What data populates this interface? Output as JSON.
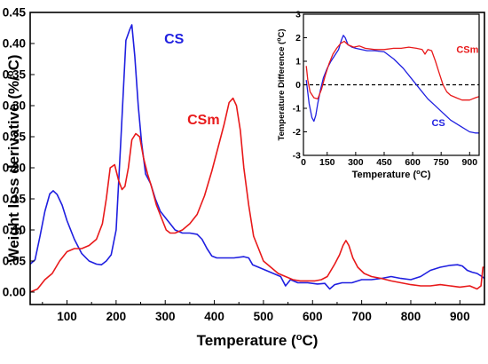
{
  "chart_data": [
    {
      "type": "line",
      "xlabel": "Temperature",
      "xlabel_unit_prefix": "(",
      "xlabel_unit_degree": "o",
      "xlabel_unit_suffix": "C)",
      "ylabel": "Weight loss derivative (%/",
      "ylabel_degree": "o",
      "ylabel_suffix": "C)",
      "xlim": [
        25,
        950
      ],
      "ylim": [
        -0.02,
        0.45
      ],
      "xticks": [
        100,
        200,
        300,
        400,
        500,
        600,
        700,
        800,
        900
      ],
      "yticks": [
        0.0,
        0.05,
        0.1,
        0.15,
        0.2,
        0.25,
        0.3,
        0.35,
        0.4,
        0.45
      ],
      "ytick_labels": [
        "0.00",
        "0.05",
        "0.10",
        "0.15",
        "0.20",
        "0.25",
        "0.30",
        "0.35",
        "0.40",
        "0.45"
      ],
      "grid": false,
      "series": [
        {
          "name": "CS",
          "color": "#1f1fe0",
          "points": [
            [
              25,
              0.045
            ],
            [
              35,
              0.052
            ],
            [
              45,
              0.09
            ],
            [
              55,
              0.13
            ],
            [
              65,
              0.158
            ],
            [
              72,
              0.163
            ],
            [
              80,
              0.157
            ],
            [
              90,
              0.14
            ],
            [
              100,
              0.115
            ],
            [
              115,
              0.085
            ],
            [
              130,
              0.062
            ],
            [
              145,
              0.05
            ],
            [
              160,
              0.045
            ],
            [
              170,
              0.044
            ],
            [
              180,
              0.05
            ],
            [
              190,
              0.06
            ],
            [
              200,
              0.1
            ],
            [
              210,
              0.25
            ],
            [
              220,
              0.405
            ],
            [
              228,
              0.423
            ],
            [
              232,
              0.43
            ],
            [
              238,
              0.38
            ],
            [
              245,
              0.3
            ],
            [
              252,
              0.24
            ],
            [
              260,
              0.19
            ],
            [
              270,
              0.175
            ],
            [
              280,
              0.15
            ],
            [
              290,
              0.13
            ],
            [
              300,
              0.12
            ],
            [
              310,
              0.11
            ],
            [
              320,
              0.1
            ],
            [
              335,
              0.095
            ],
            [
              350,
              0.095
            ],
            [
              365,
              0.093
            ],
            [
              375,
              0.085
            ],
            [
              385,
              0.07
            ],
            [
              395,
              0.058
            ],
            [
              405,
              0.055
            ],
            [
              420,
              0.055
            ],
            [
              440,
              0.055
            ],
            [
              460,
              0.057
            ],
            [
              470,
              0.055
            ],
            [
              478,
              0.044
            ],
            [
              490,
              0.04
            ],
            [
              505,
              0.035
            ],
            [
              520,
              0.03
            ],
            [
              535,
              0.025
            ],
            [
              545,
              0.01
            ],
            [
              555,
              0.02
            ],
            [
              570,
              0.015
            ],
            [
              590,
              0.015
            ],
            [
              610,
              0.013
            ],
            [
              625,
              0.014
            ],
            [
              635,
              0.005
            ],
            [
              645,
              0.012
            ],
            [
              660,
              0.015
            ],
            [
              680,
              0.015
            ],
            [
              700,
              0.02
            ],
            [
              720,
              0.02
            ],
            [
              740,
              0.022
            ],
            [
              760,
              0.025
            ],
            [
              780,
              0.022
            ],
            [
              800,
              0.02
            ],
            [
              820,
              0.025
            ],
            [
              840,
              0.035
            ],
            [
              860,
              0.04
            ],
            [
              880,
              0.043
            ],
            [
              895,
              0.044
            ],
            [
              905,
              0.042
            ],
            [
              915,
              0.035
            ],
            [
              925,
              0.032
            ],
            [
              935,
              0.03
            ],
            [
              945,
              0.025
            ],
            [
              950,
              0.022
            ]
          ]
        },
        {
          "name": "CSm",
          "color": "#e8191a",
          "points": [
            [
              25,
              0.0
            ],
            [
              40,
              0.005
            ],
            [
              55,
              0.02
            ],
            [
              70,
              0.03
            ],
            [
              85,
              0.05
            ],
            [
              100,
              0.065
            ],
            [
              115,
              0.07
            ],
            [
              130,
              0.07
            ],
            [
              145,
              0.075
            ],
            [
              160,
              0.085
            ],
            [
              172,
              0.11
            ],
            [
              180,
              0.15
            ],
            [
              188,
              0.2
            ],
            [
              197,
              0.205
            ],
            [
              205,
              0.18
            ],
            [
              212,
              0.165
            ],
            [
              218,
              0.17
            ],
            [
              225,
              0.2
            ],
            [
              232,
              0.245
            ],
            [
              240,
              0.255
            ],
            [
              248,
              0.25
            ],
            [
              256,
              0.215
            ],
            [
              264,
              0.19
            ],
            [
              272,
              0.17
            ],
            [
              282,
              0.14
            ],
            [
              292,
              0.12
            ],
            [
              302,
              0.1
            ],
            [
              310,
              0.095
            ],
            [
              320,
              0.095
            ],
            [
              335,
              0.1
            ],
            [
              350,
              0.11
            ],
            [
              365,
              0.125
            ],
            [
              380,
              0.155
            ],
            [
              395,
              0.195
            ],
            [
              410,
              0.24
            ],
            [
              420,
              0.27
            ],
            [
              430,
              0.305
            ],
            [
              438,
              0.312
            ],
            [
              445,
              0.3
            ],
            [
              453,
              0.26
            ],
            [
              460,
              0.2
            ],
            [
              470,
              0.14
            ],
            [
              480,
              0.09
            ],
            [
              490,
              0.07
            ],
            [
              500,
              0.05
            ],
            [
              515,
              0.04
            ],
            [
              530,
              0.03
            ],
            [
              545,
              0.025
            ],
            [
              560,
              0.02
            ],
            [
              575,
              0.018
            ],
            [
              590,
              0.018
            ],
            [
              605,
              0.018
            ],
            [
              618,
              0.02
            ],
            [
              630,
              0.025
            ],
            [
              645,
              0.045
            ],
            [
              655,
              0.06
            ],
            [
              662,
              0.075
            ],
            [
              668,
              0.083
            ],
            [
              674,
              0.075
            ],
            [
              682,
              0.055
            ],
            [
              692,
              0.04
            ],
            [
              705,
              0.03
            ],
            [
              720,
              0.025
            ],
            [
              740,
              0.022
            ],
            [
              760,
              0.018
            ],
            [
              780,
              0.015
            ],
            [
              800,
              0.012
            ],
            [
              820,
              0.01
            ],
            [
              840,
              0.01
            ],
            [
              860,
              0.012
            ],
            [
              880,
              0.01
            ],
            [
              900,
              0.008
            ],
            [
              920,
              0.01
            ],
            [
              935,
              0.005
            ],
            [
              943,
              0.01
            ],
            [
              947,
              0.04
            ],
            [
              950,
              0.04
            ]
          ]
        }
      ],
      "annotations": [
        {
          "text": "CS",
          "series": "CS",
          "x": 298,
          "y": 0.4
        },
        {
          "text": "CSm",
          "series": "CSm",
          "x": 345,
          "y": 0.27
        }
      ]
    },
    {
      "type": "line",
      "xlabel": "Temperature",
      "xlabel_unit_prefix": "(",
      "xlabel_unit_degree": "o",
      "xlabel_unit_suffix": "C)",
      "ylabel": "Temperature Difference (",
      "ylabel_degree": "o",
      "ylabel_suffix": "C)",
      "xlim": [
        25,
        950
      ],
      "ylim": [
        -3,
        3
      ],
      "xticks": [
        0,
        150,
        300,
        450,
        600,
        750,
        900
      ],
      "yticks": [
        -3,
        -2,
        -1,
        0,
        1,
        2,
        3
      ],
      "reference_line": {
        "y": 0,
        "style": "dashed"
      },
      "grid": false,
      "series": [
        {
          "name": "CS",
          "color": "#1f1fe0",
          "points": [
            [
              40,
              0.2
            ],
            [
              55,
              -0.8
            ],
            [
              70,
              -1.4
            ],
            [
              80,
              -1.55
            ],
            [
              90,
              -1.3
            ],
            [
              100,
              -0.8
            ],
            [
              115,
              -0.2
            ],
            [
              130,
              0.3
            ],
            [
              150,
              0.7
            ],
            [
              170,
              1.0
            ],
            [
              190,
              1.25
            ],
            [
              210,
              1.5
            ],
            [
              225,
              1.9
            ],
            [
              235,
              2.1
            ],
            [
              245,
              2.0
            ],
            [
              260,
              1.7
            ],
            [
              280,
              1.6
            ],
            [
              300,
              1.55
            ],
            [
              330,
              1.5
            ],
            [
              360,
              1.45
            ],
            [
              400,
              1.45
            ],
            [
              450,
              1.4
            ],
            [
              500,
              1.1
            ],
            [
              550,
              0.7
            ],
            [
              600,
              0.2
            ],
            [
              640,
              -0.2
            ],
            [
              680,
              -0.6
            ],
            [
              720,
              -0.9
            ],
            [
              760,
              -1.2
            ],
            [
              800,
              -1.5
            ],
            [
              850,
              -1.75
            ],
            [
              900,
              -2.0
            ],
            [
              930,
              -2.05
            ],
            [
              950,
              -2.05
            ]
          ]
        },
        {
          "name": "CSm",
          "color": "#e8191a",
          "points": [
            [
              40,
              0.8
            ],
            [
              48,
              0.2
            ],
            [
              60,
              -0.3
            ],
            [
              80,
              -0.55
            ],
            [
              100,
              -0.6
            ],
            [
              120,
              -0.2
            ],
            [
              140,
              0.4
            ],
            [
              160,
              0.9
            ],
            [
              180,
              1.3
            ],
            [
              200,
              1.55
            ],
            [
              220,
              1.75
            ],
            [
              240,
              1.85
            ],
            [
              260,
              1.7
            ],
            [
              290,
              1.6
            ],
            [
              320,
              1.65
            ],
            [
              350,
              1.55
            ],
            [
              400,
              1.5
            ],
            [
              450,
              1.5
            ],
            [
              500,
              1.55
            ],
            [
              540,
              1.55
            ],
            [
              580,
              1.6
            ],
            [
              620,
              1.55
            ],
            [
              650,
              1.5
            ],
            [
              665,
              1.3
            ],
            [
              680,
              1.5
            ],
            [
              700,
              1.45
            ],
            [
              720,
              1.0
            ],
            [
              740,
              0.5
            ],
            [
              760,
              0.0
            ],
            [
              780,
              -0.3
            ],
            [
              800,
              -0.45
            ],
            [
              830,
              -0.55
            ],
            [
              860,
              -0.65
            ],
            [
              900,
              -0.65
            ],
            [
              930,
              -0.55
            ],
            [
              950,
              -0.5
            ]
          ]
        }
      ],
      "annotations": [
        {
          "text": "CSm",
          "series": "CSm",
          "x": 830,
          "y": 1.35
        },
        {
          "text": "CS",
          "series": "CS",
          "x": 700,
          "y": -1.75
        }
      ]
    }
  ]
}
